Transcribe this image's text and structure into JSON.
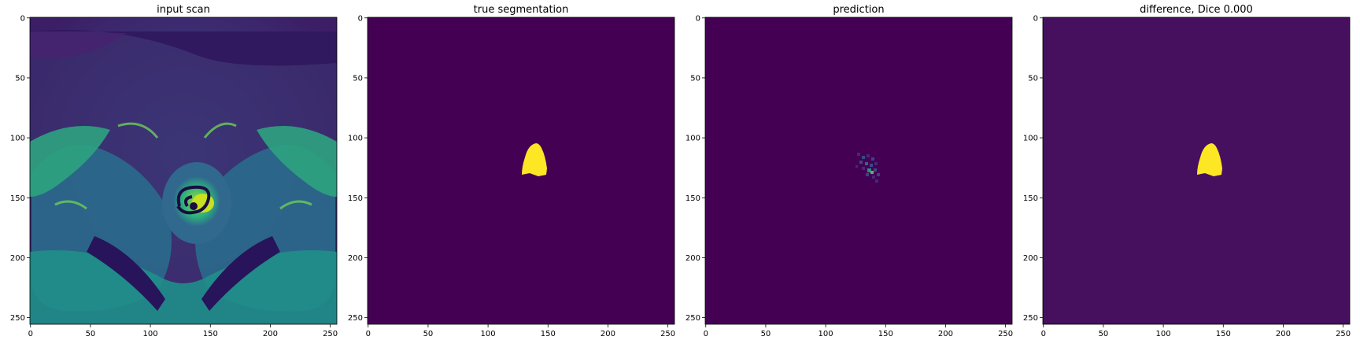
{
  "figure": {
    "panels": [
      {
        "id": "input-scan",
        "title": "input scan",
        "background_color": "#3b1e66",
        "content": "mri-slice"
      },
      {
        "id": "true-segmentation",
        "title": "true segmentation",
        "background_color": "#440154",
        "content": "mask"
      },
      {
        "id": "prediction",
        "title": "prediction",
        "background_color": "#440154",
        "content": "prediction-noise"
      },
      {
        "id": "difference",
        "title": "difference, Dice 0.000",
        "background_color": "#46105e",
        "content": "mask"
      }
    ],
    "axis": {
      "x_ticks": [
        "0",
        "50",
        "100",
        "150",
        "200",
        "250"
      ],
      "y_ticks": [
        "0",
        "50",
        "100",
        "150",
        "200",
        "250"
      ],
      "range": [
        0,
        255
      ]
    },
    "colors": {
      "mask_yellow": "#fde725",
      "teal": "#21a28c",
      "green": "#5ec962",
      "dark_purple": "#440154",
      "mid_purple": "#3b1e66"
    }
  }
}
